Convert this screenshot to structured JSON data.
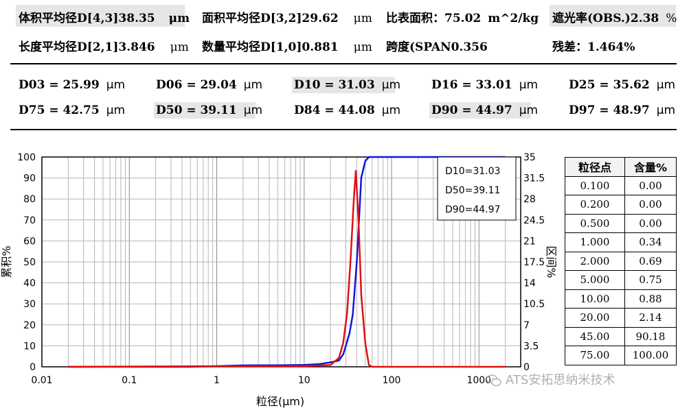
{
  "summary": {
    "row1": [
      {
        "label": "体积平均径D[4,3]",
        "value": "38.35",
        "unit": "μm"
      },
      {
        "label": "面积平均径D[3,2]",
        "value": "29.62",
        "unit": "μm"
      },
      {
        "label": "比表面积：",
        "value": "75.02",
        "unit": "m^2/kg"
      },
      {
        "label": "遮光率(OBS.)",
        "value": "2.38",
        "unit": "%"
      }
    ],
    "row2": [
      {
        "label": "长度平均径D[2,1]",
        "value": "3.846",
        "unit": "μm"
      },
      {
        "label": "数量平均径D[1,0]",
        "value": "0.881",
        "unit": "μm"
      },
      {
        "label": "跨度(SPAN",
        "value": "0.356",
        "unit": ""
      },
      {
        "label": "残差：",
        "value": "1.464%",
        "unit": ""
      }
    ]
  },
  "d_values": {
    "row1": [
      {
        "label": "D03 = 25.99",
        "unit": "μm"
      },
      {
        "label": "D06 = 29.04",
        "unit": "μm"
      },
      {
        "label": "D10 = 31.03",
        "unit": "μm"
      },
      {
        "label": "D16 = 33.01",
        "unit": "μm"
      },
      {
        "label": "D25 = 35.62",
        "unit": "μm"
      }
    ],
    "row2": [
      {
        "label": "D75 = 42.75",
        "unit": "μm"
      },
      {
        "label": "D50 = 39.11",
        "unit": "μm"
      },
      {
        "label": "D84 = 44.08",
        "unit": "μm"
      },
      {
        "label": "D90 = 44.97",
        "unit": "μm"
      },
      {
        "label": "D97 = 48.97",
        "unit": "μm"
      }
    ]
  },
  "table": {
    "headers": [
      "粒径点",
      "含量%"
    ],
    "rows": [
      [
        "0.100",
        "0.00"
      ],
      [
        "0.200",
        "0.00"
      ],
      [
        "0.500",
        "0.00"
      ],
      [
        "1.000",
        "0.34"
      ],
      [
        "2.000",
        "0.69"
      ],
      [
        "5.000",
        "0.75"
      ],
      [
        "10.00",
        "0.88"
      ],
      [
        "20.00",
        "2.14"
      ],
      [
        "45.00",
        "90.18"
      ],
      [
        "75.00",
        "100.00"
      ]
    ]
  },
  "watermark": "ATS安拓思纳米技术",
  "chart_data": {
    "type": "line",
    "xlabel": "粒径(μm)",
    "ylabel": "累积%",
    "y2label": "区间%",
    "x_scale": "log",
    "xlim": [
      0.01,
      3000
    ],
    "ylim": [
      0,
      100
    ],
    "y2lim": [
      0,
      35
    ],
    "x_ticks": [
      "0.01",
      "0.1",
      "1",
      "10",
      "100",
      "1000"
    ],
    "y_ticks": [
      "0",
      "10",
      "20",
      "30",
      "40",
      "50",
      "60",
      "70",
      "80",
      "90",
      "100"
    ],
    "y2_ticks": [
      "0",
      "3.5",
      "7",
      "10.5",
      "14",
      "17.5",
      "21",
      "24.5",
      "28",
      "31.5",
      "35"
    ],
    "grid": true,
    "legend_box": [
      "D10=31.03",
      "D50=39.11",
      "D90=44.97"
    ],
    "series": [
      {
        "role": "cumulative",
        "axis": "left",
        "color": "#1414dc",
        "x": [
          0.02,
          0.5,
          1,
          2,
          5,
          10,
          15,
          20,
          25,
          28,
          30,
          33,
          36,
          40,
          45,
          50,
          55,
          60,
          100,
          200,
          500,
          1000,
          2000
        ],
        "y": [
          0,
          0,
          0.34,
          0.69,
          0.75,
          0.88,
          1.3,
          2.14,
          3,
          6,
          10,
          16,
          25,
          50,
          90.18,
          98,
          100,
          100,
          100,
          100,
          100,
          100,
          100
        ]
      },
      {
        "role": "interval",
        "axis": "right",
        "color": "#e01010",
        "x": [
          0.02,
          1,
          10,
          20,
          25,
          28,
          31,
          34,
          37,
          39,
          42,
          45,
          50,
          55,
          60,
          100,
          1000,
          2000
        ],
        "y": [
          0,
          0.1,
          0.1,
          0.3,
          1.5,
          4,
          9,
          18,
          28,
          32.7,
          24,
          12,
          4,
          0.3,
          0,
          0,
          0,
          0
        ]
      }
    ]
  }
}
